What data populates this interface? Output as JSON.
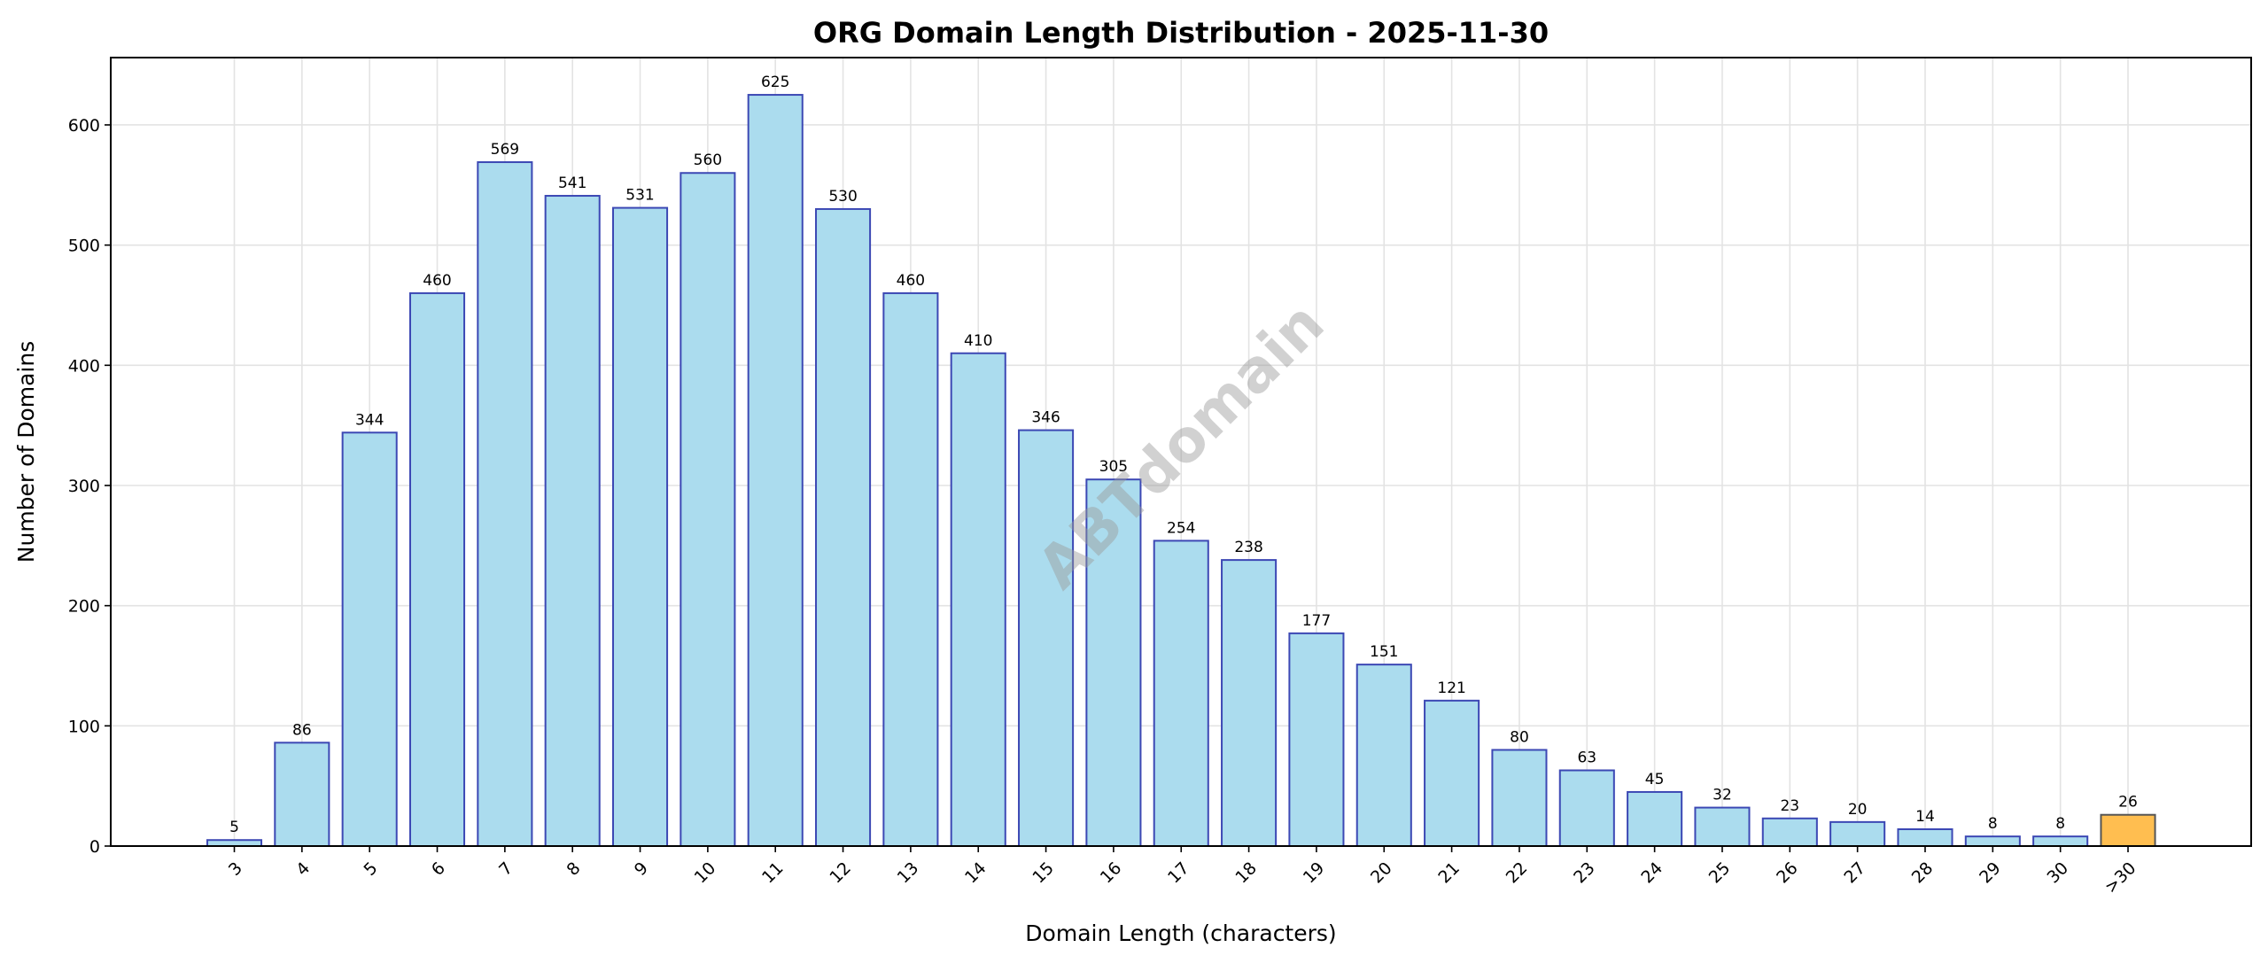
{
  "chart_data": {
    "type": "bar",
    "title": "ORG Domain Length Distribution - 2025-11-30",
    "xlabel": "Domain Length (characters)",
    "ylabel": "Number of Domains",
    "categories": [
      "3",
      "4",
      "5",
      "6",
      "7",
      "8",
      "9",
      "10",
      "11",
      "12",
      "13",
      "14",
      "15",
      "16",
      "17",
      "18",
      "19",
      "20",
      "21",
      "22",
      "23",
      "24",
      "25",
      "26",
      "27",
      "28",
      "29",
      "30",
      ">30"
    ],
    "values": [
      5,
      86,
      344,
      460,
      569,
      541,
      531,
      560,
      625,
      530,
      460,
      410,
      346,
      305,
      254,
      238,
      177,
      151,
      121,
      80,
      63,
      45,
      32,
      23,
      20,
      14,
      8,
      8,
      26
    ],
    "ylim": [
      0,
      656
    ],
    "yticks": [
      0,
      100,
      200,
      300,
      400,
      500,
      600
    ],
    "grid": true,
    "colors": {
      "bar": "#ABDCEE",
      "bar_edge": "#3C48B4",
      "highlight_bar": "#FFBE50",
      "highlight_edge": "#555555"
    },
    "highlight_category": ">30",
    "watermark": "ABTdomain"
  }
}
